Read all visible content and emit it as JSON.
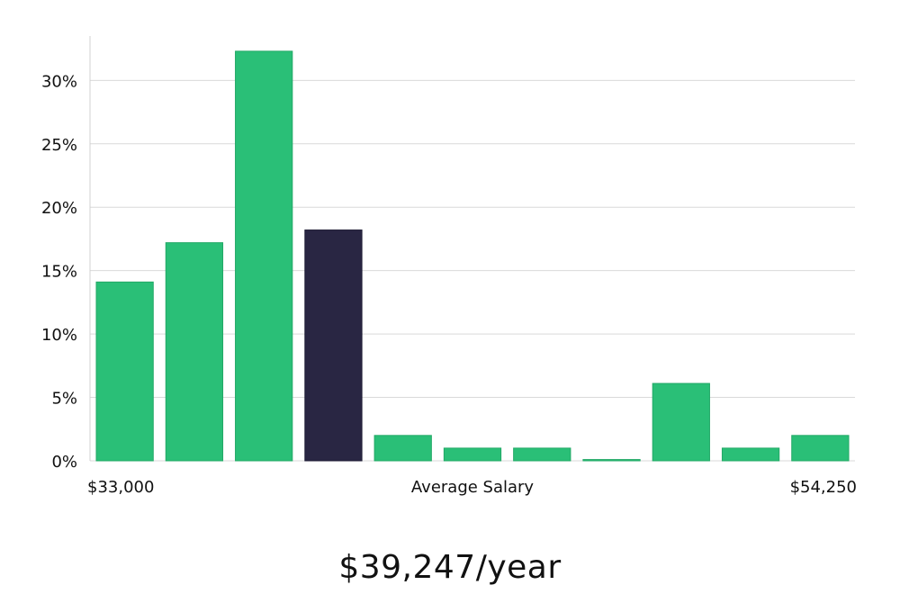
{
  "chart_data": {
    "type": "bar",
    "values": [
      14.1,
      17.2,
      32.3,
      18.2,
      2.0,
      1.0,
      1.0,
      0.1,
      6.1,
      1.0,
      2.0
    ],
    "highlight_index": 3,
    "ylim": [
      0,
      33.5
    ],
    "yticks": [
      0,
      5,
      10,
      15,
      20,
      25,
      30
    ],
    "ytick_labels": [
      "0%",
      "5%",
      "10%",
      "15%",
      "20%",
      "25%",
      "30%"
    ],
    "x_min_label": "$33,000",
    "x_max_label": "$54,250",
    "xlabel": "Average Salary",
    "grid": true
  },
  "colors": {
    "bar": "#2abf77",
    "highlight_bar": "#292643",
    "grid": "#d9d9d9",
    "axis": "#d0d0d0"
  },
  "headline": "$39,247/year"
}
